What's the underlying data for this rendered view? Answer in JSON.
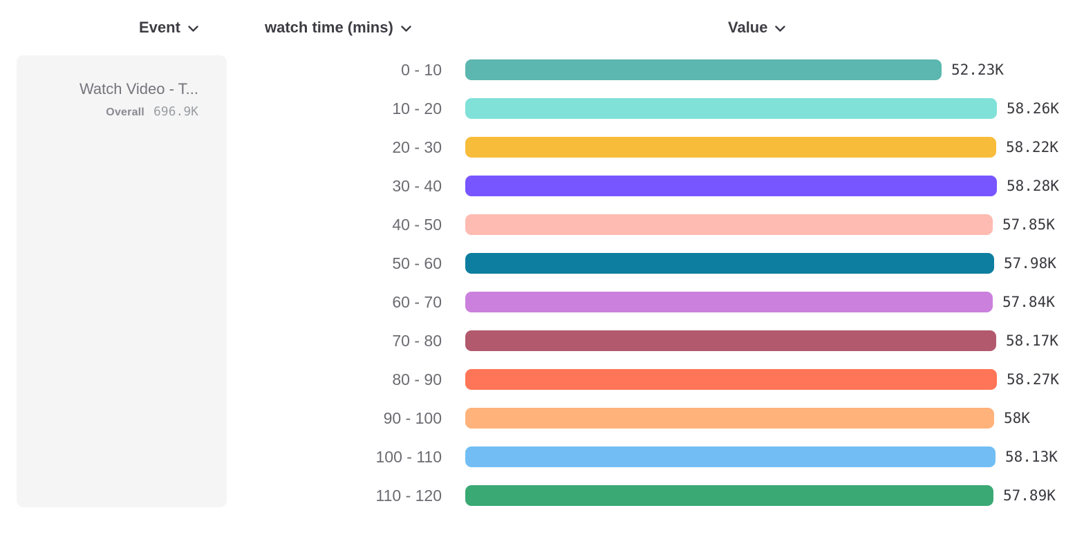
{
  "header": {
    "columns": [
      {
        "label": "Event"
      },
      {
        "label": "watch time (mins)"
      },
      {
        "label": "Value"
      }
    ]
  },
  "event_panel": {
    "event_name": "Watch Video - T...",
    "overall_label": "Overall",
    "overall_value": "696.9K"
  },
  "chart_data": {
    "type": "bar",
    "orientation": "horizontal",
    "title": "",
    "xlabel": "Value",
    "ylabel": "watch time (mins)",
    "legend": false,
    "grid": false,
    "categories": [
      "0 - 10",
      "10 - 20",
      "20 - 30",
      "30 - 40",
      "40 - 50",
      "50 - 60",
      "60 - 70",
      "70 - 80",
      "80 - 90",
      "90 - 100",
      "100 - 110",
      "110 - 120"
    ],
    "values": [
      52230,
      58260,
      58220,
      58280,
      57850,
      57980,
      57840,
      58170,
      58270,
      58000,
      58130,
      57890
    ],
    "value_labels": [
      "52.23K",
      "58.26K",
      "58.22K",
      "58.28K",
      "57.85K",
      "57.98K",
      "57.84K",
      "58.17K",
      "58.27K",
      "58K",
      "58.13K",
      "57.89K"
    ],
    "bar_colors": [
      "#5BB7AF",
      "#80E1D9",
      "#F8BC3B",
      "#7856FF",
      "#FEBBB2",
      "#0D7EA0",
      "#CA80DC",
      "#B2596E",
      "#FF7557",
      "#FFB27A",
      "#72BEF4",
      "#3BA974"
    ],
    "overall_total": "696.9K",
    "series_name": "Watch Video - T..."
  },
  "icons": {
    "chevron_down": "chevron-down"
  },
  "colors": {
    "header_text": "#3c3c43",
    "bucket_label_text": "#6b6b71",
    "value_label_text": "#38383e",
    "panel_bg": "#f5f5f6",
    "event_name_text": "#74747a",
    "overall_label_text": "#8a8a90",
    "overall_value_text": "#9b9ea1"
  }
}
